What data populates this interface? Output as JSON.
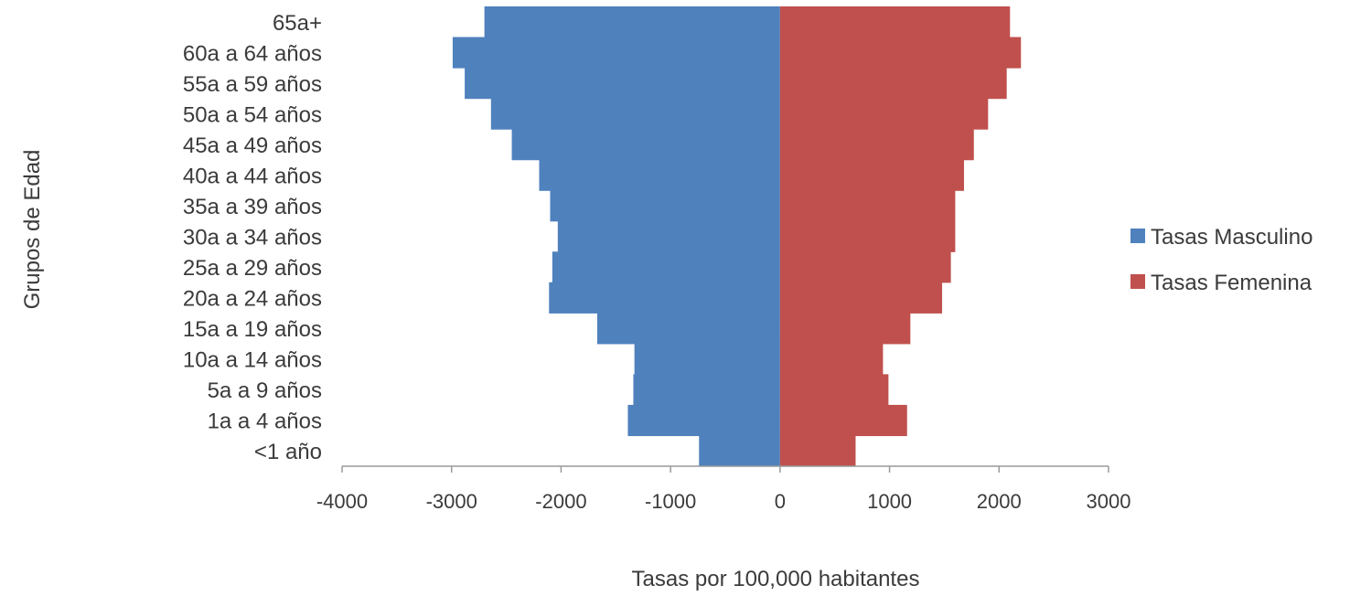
{
  "chart_data": {
    "type": "bar",
    "orientation": "horizontal",
    "stacked": true,
    "title": "",
    "xlabel": "Tasas por 100,000 habitantes",
    "ylabel": "Grupos de Edad",
    "xlim": [
      -4000,
      3000
    ],
    "xticks": [
      -4000,
      -3000,
      -2000,
      -1000,
      0,
      1000,
      2000,
      3000
    ],
    "xtick_labels": [
      "-4000",
      "-3000",
      "-2000",
      "-1000",
      "0",
      "1000",
      "2000",
      "3000"
    ],
    "grid": false,
    "legend_position": "right",
    "categories": [
      "<1 año",
      "1a a 4 años",
      "5a a 9 años",
      "10a  a 14 años",
      "15a  a 19 años",
      "20a a 24 años",
      "25a a 29 años",
      "30a a 34 años",
      "35a a 39 años",
      "40a a 44 años",
      "45a a 49 años",
      "50a a 54 años",
      "55a a 59 años",
      "60a a 64 años",
      "65a+"
    ],
    "series": [
      {
        "name": "Tasas Masculino",
        "color": "#4f81bd",
        "values": [
          -740,
          -1390,
          -1340,
          -1330,
          -1670,
          -2110,
          -2080,
          -2030,
          -2100,
          -2200,
          -2450,
          -2640,
          -2880,
          -2990,
          -2700
        ]
      },
      {
        "name": "Tasas Femenina",
        "color": "#c0504d",
        "values": [
          690,
          1160,
          990,
          940,
          1190,
          1480,
          1560,
          1600,
          1600,
          1680,
          1770,
          1900,
          2070,
          2200,
          2100
        ]
      }
    ]
  }
}
